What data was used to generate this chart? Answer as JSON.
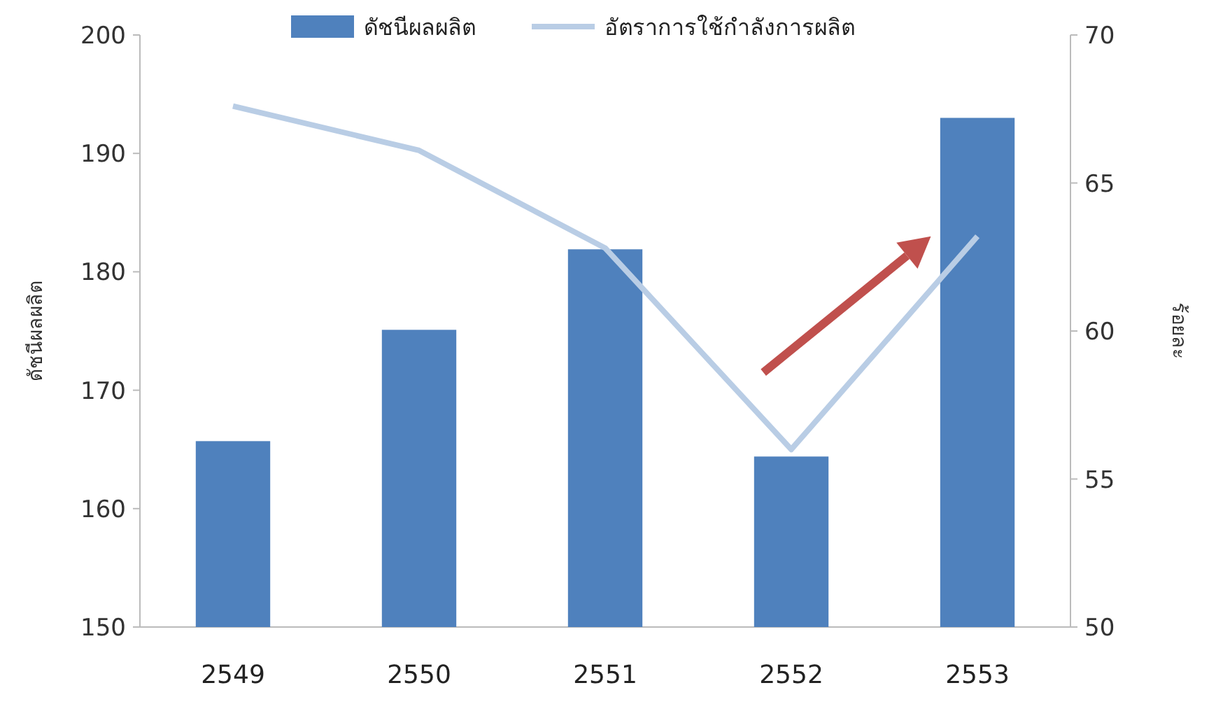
{
  "chart_data": {
    "type": "bar",
    "categories": [
      "2549",
      "2550",
      "2551",
      "2552",
      "2553"
    ],
    "ylabel": "ดัชนีผลผลิต",
    "y2label": "ร้อยละ",
    "ylim": [
      150,
      200
    ],
    "yticks": [
      150,
      160,
      170,
      180,
      190,
      200
    ],
    "y2lim": [
      50,
      70
    ],
    "y2ticks": [
      50,
      55,
      60,
      65,
      70
    ],
    "legend": "top",
    "series": [
      {
        "name": "ดัชนีผลผลิต",
        "color": "#4f81bd",
        "values": [
          165.7,
          175.1,
          181.9,
          164.4,
          193.0
        ]
      },
      {
        "name": "อัตราการใช้กำลังการผลิต",
        "type": "line",
        "axis": "y2",
        "color": "#b9cde5",
        "values": [
          67.6,
          66.1,
          62.8,
          56.0,
          63.2
        ]
      }
    ]
  }
}
